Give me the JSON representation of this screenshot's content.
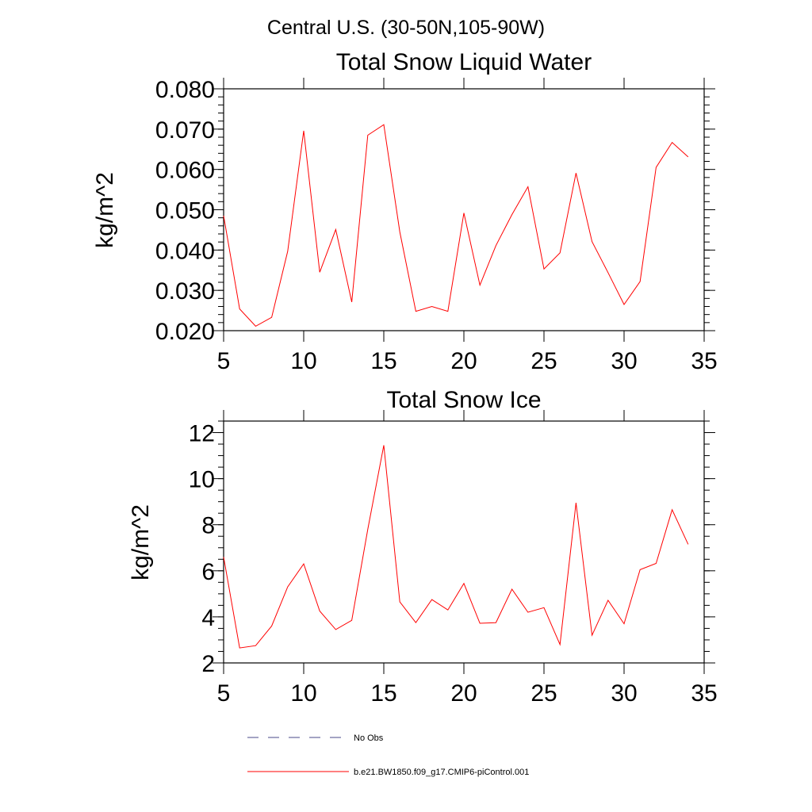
{
  "figure_title": "Central U.S. (30-50N,105-90W)",
  "colors": {
    "model": "#ff0000",
    "obs": "#4a4a8a",
    "axis": "#000000"
  },
  "legend": {
    "obs_label": "No Obs",
    "model_label": "b.e21.BW1850.f09_g17.CMIP6-piControl.001"
  },
  "chart_data": [
    {
      "type": "line",
      "title": "Total Snow Liquid Water",
      "xlabel": "",
      "ylabel": "kg/m^2",
      "xlim": [
        5,
        35
      ],
      "ylim": [
        0.02,
        0.08
      ],
      "x_ticks": [
        5,
        10,
        15,
        20,
        25,
        30,
        35
      ],
      "x_tick_labels": [
        "5",
        "10",
        "15",
        "20",
        "25",
        "30",
        "35"
      ],
      "y_ticks": [
        0.02,
        0.03,
        0.04,
        0.05,
        0.06,
        0.07,
        0.08
      ],
      "y_tick_labels": [
        "0.020",
        "0.030",
        "0.040",
        "0.050",
        "0.060",
        "0.070",
        "0.080"
      ],
      "y_minor_step": 0.002,
      "grid": false,
      "series": [
        {
          "name": "b.e21.BW1850.f09_g17.CMIP6-piControl.001",
          "x": [
            5,
            6,
            7,
            8,
            9,
            10,
            11,
            12,
            13,
            14,
            15,
            16,
            17,
            18,
            19,
            20,
            21,
            22,
            23,
            24,
            25,
            26,
            27,
            28,
            29,
            30,
            31,
            32,
            33,
            34
          ],
          "values": [
            0.0485,
            0.0254,
            0.0211,
            0.0233,
            0.0397,
            0.0696,
            0.0345,
            0.0451,
            0.0271,
            0.0685,
            0.0711,
            0.0445,
            0.0248,
            0.026,
            0.0248,
            0.0492,
            0.0313,
            0.0411,
            0.0488,
            0.0557,
            0.0353,
            0.0393,
            0.0591,
            0.0421,
            0.0344,
            0.0265,
            0.0322,
            0.0605,
            0.0667,
            0.0631
          ]
        }
      ]
    },
    {
      "type": "line",
      "title": "Total Snow Ice",
      "xlabel": "",
      "ylabel": "kg/m^2",
      "xlim": [
        5,
        35
      ],
      "ylim": [
        2,
        12.5
      ],
      "x_ticks": [
        5,
        10,
        15,
        20,
        25,
        30,
        35
      ],
      "x_tick_labels": [
        "5",
        "10",
        "15",
        "20",
        "25",
        "30",
        "35"
      ],
      "y_ticks": [
        2,
        4,
        6,
        8,
        10,
        12
      ],
      "y_tick_labels": [
        "2",
        "4",
        "6",
        "8",
        "10",
        "12"
      ],
      "y_minor_step": 0.5,
      "grid": false,
      "series": [
        {
          "name": "b.e21.BW1850.f09_g17.CMIP6-piControl.001",
          "x": [
            5,
            6,
            7,
            8,
            9,
            10,
            11,
            12,
            13,
            14,
            15,
            16,
            17,
            18,
            19,
            20,
            21,
            22,
            23,
            24,
            25,
            26,
            27,
            28,
            29,
            30,
            31,
            32,
            33,
            34
          ],
          "values": [
            6.6,
            2.65,
            2.75,
            3.6,
            5.3,
            6.3,
            4.25,
            3.45,
            3.85,
            7.8,
            11.45,
            4.65,
            3.75,
            4.75,
            4.3,
            5.45,
            3.72,
            3.75,
            5.2,
            4.2,
            4.4,
            2.8,
            8.95,
            3.2,
            4.72,
            3.7,
            6.05,
            6.32,
            8.65,
            7.15
          ]
        }
      ]
    }
  ]
}
